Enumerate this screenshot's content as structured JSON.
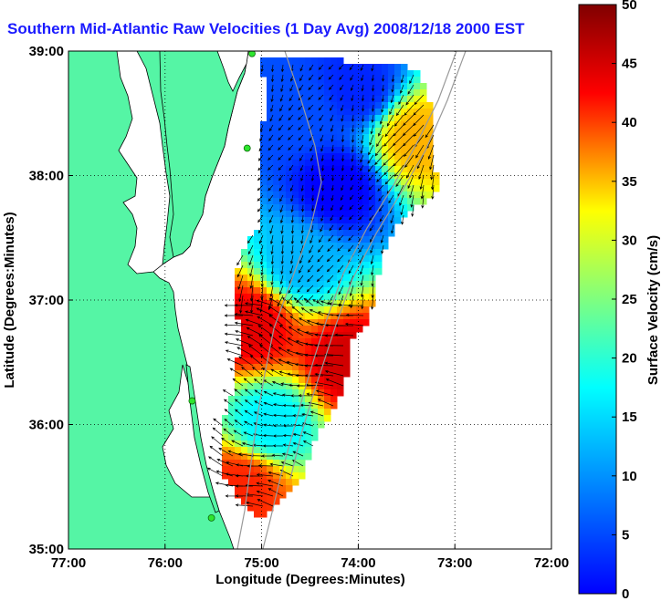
{
  "title": "Southern Mid-Atlantic Raw Velocities (1 Day Avg) 2008/12/18 2000 EST",
  "map": {
    "xlabel": "Longitude (Degrees:Minutes)",
    "ylabel": "Latitude (Degrees:Minutes)",
    "x_ticks": [
      "77:00",
      "76:00",
      "75:00",
      "74:00",
      "73:00",
      "72:00"
    ],
    "y_ticks": [
      "39:00",
      "38:00",
      "37:00",
      "36:00",
      "35:00"
    ],
    "land_color": "#55f5a5",
    "grid": "dotted"
  },
  "colorbar": {
    "label": "Surface Velocity (cm/s)",
    "ticks": [
      "50",
      "45",
      "40",
      "35",
      "30",
      "25",
      "20",
      "15",
      "10",
      "5",
      "0"
    ],
    "range": [
      0,
      50
    ],
    "colormap": "jet"
  },
  "chart_data": {
    "type": "heatmap",
    "title": "Southern Mid-Atlantic Raw Velocities (1 Day Avg) 2008/12/18 2000 EST",
    "xlabel": "Longitude (Degrees:Minutes)",
    "ylabel": "Latitude (Degrees:Minutes)",
    "xlim": [
      -77,
      -72
    ],
    "ylim": [
      35,
      39
    ],
    "value_label": "Surface Velocity (cm/s)",
    "value_range": [
      0,
      50
    ],
    "regions": [
      {
        "lon": -74.6,
        "lat": 38.5,
        "speed": 10
      },
      {
        "lon": -74.0,
        "lat": 38.7,
        "speed": 8
      },
      {
        "lon": -73.4,
        "lat": 38.3,
        "speed": 35
      },
      {
        "lon": -74.2,
        "lat": 37.9,
        "speed": 6
      },
      {
        "lon": -74.6,
        "lat": 37.3,
        "speed": 15
      },
      {
        "lon": -75.1,
        "lat": 36.8,
        "speed": 45
      },
      {
        "lon": -74.1,
        "lat": 36.5,
        "speed": 46
      },
      {
        "lon": -74.9,
        "lat": 36.0,
        "speed": 18
      },
      {
        "lon": -75.2,
        "lat": 35.5,
        "speed": 42
      }
    ],
    "sites": [
      {
        "lon": -75.1,
        "lat": 38.98
      },
      {
        "lon": -75.15,
        "lat": 38.22
      },
      {
        "lon": -75.72,
        "lat": 36.19
      },
      {
        "lon": -75.52,
        "lat": 35.25
      }
    ]
  }
}
